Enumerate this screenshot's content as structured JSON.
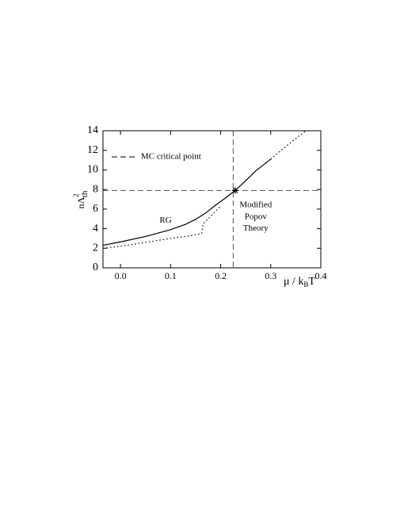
{
  "chart_data": {
    "type": "line",
    "x_label": {
      "base": "μ / k",
      "sub": "B",
      "tail": "T"
    },
    "y_label": {
      "base": "nΛ",
      "sup": "2",
      "sub": "th"
    },
    "xlim": [
      -0.035,
      0.4
    ],
    "ylim": [
      0,
      14
    ],
    "xticks": [
      {
        "value": 0,
        "label": "0.0"
      },
      0.1,
      0.2,
      0.3,
      0.4
    ],
    "yticks": [
      0,
      2,
      4,
      6,
      8,
      10,
      12,
      14
    ],
    "series": [
      {
        "color": "#000000",
        "style": "solid",
        "x": [
          -0.035,
          0,
          0.05,
          0.1,
          0.13,
          0.15,
          0.17,
          0.19,
          0.21,
          0.23,
          0.25,
          0.27,
          0.3
        ],
        "values": [
          2.3,
          2.65,
          3.2,
          3.9,
          4.45,
          4.95,
          5.6,
          6.4,
          7.15,
          7.95,
          8.9,
          9.9,
          11.1
        ]
      },
      {
        "color": "#000000",
        "style": "dotted",
        "x": [
          0.3,
          0.33,
          0.37
        ],
        "values": [
          11.1,
          12.4,
          14
        ]
      },
      {
        "color": "#000000",
        "style": "dotted",
        "x": [
          -0.035,
          0,
          0.05,
          0.1,
          0.14,
          0.162,
          0.165,
          0.175,
          0.19,
          0.2
        ],
        "values": [
          2.0,
          2.2,
          2.6,
          3.0,
          3.3,
          3.5,
          4.5,
          5.0,
          5.8,
          6.3
        ]
      }
    ],
    "reference": {
      "name": "MC critical point",
      "x": 0.225,
      "y": 7.9,
      "color": "#555555"
    },
    "critical_point": {
      "x": 0.229,
      "y": 7.9
    },
    "annotations": [
      {
        "text": "RG",
        "x": 0.09,
        "y": 4.8
      },
      {
        "text": "Modified",
        "x": 0.27,
        "y": 6.4
      },
      {
        "text": "Popov",
        "x": 0.27,
        "y": 5.2
      },
      {
        "text": "Theory",
        "x": 0.27,
        "y": 4.0
      }
    ]
  }
}
